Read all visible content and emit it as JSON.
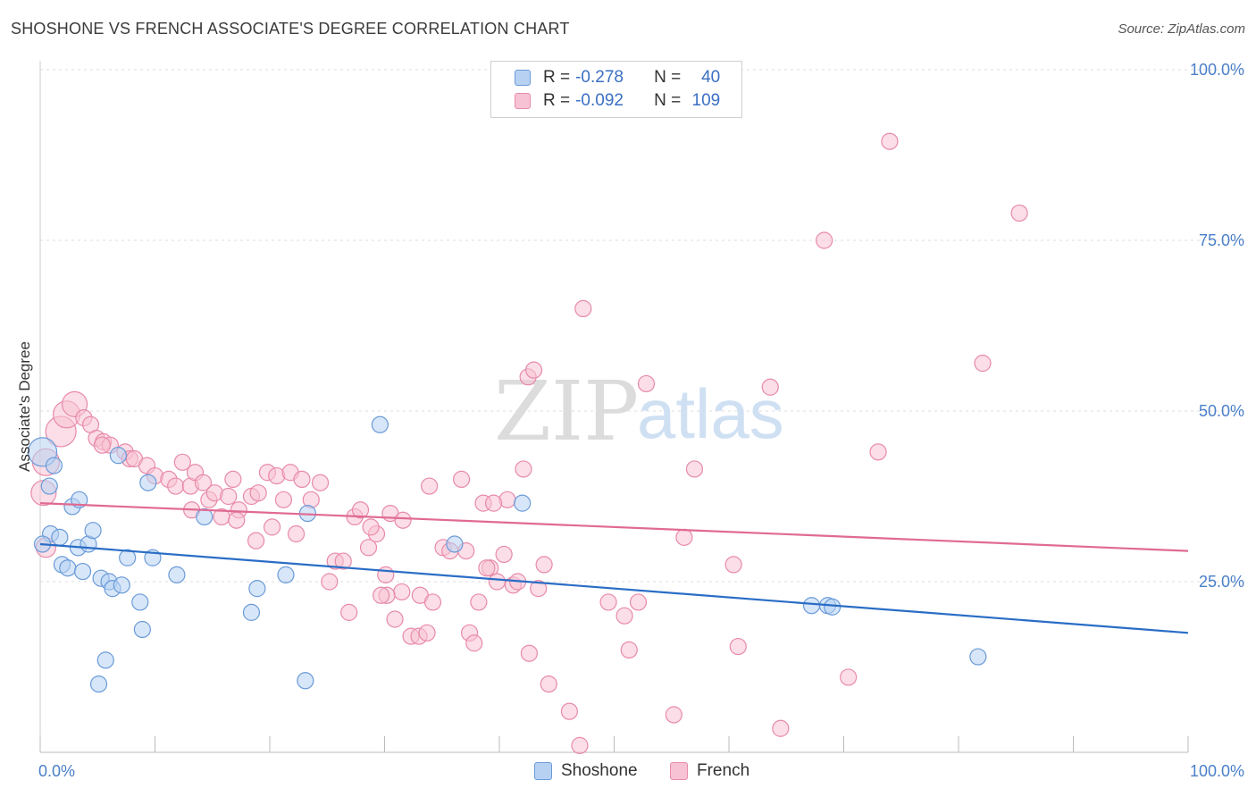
{
  "title": "SHOSHONE VS FRENCH ASSOCIATE'S DEGREE CORRELATION CHART",
  "source": "Source: ZipAtlas.com",
  "watermark": {
    "part1": "ZIP",
    "part2": "atlas"
  },
  "legend": {
    "rows": [
      {
        "r_label": "R =",
        "r_value": "-0.278",
        "n_label": "N =",
        "n_value": "40"
      },
      {
        "r_label": "R =",
        "r_value": "-0.092",
        "n_label": "N =",
        "n_value": "109"
      }
    ]
  },
  "colors": {
    "shoshone_fill": "#b7d1f3",
    "shoshone_stroke": "#6a9bd8",
    "shoshone_line": "#2a6dc6",
    "french_fill": "#f7c3d4",
    "french_stroke": "#e88aa9",
    "french_line": "#e06a93"
  },
  "chart_data": {
    "type": "scatter",
    "title": "SHOSHONE VS FRENCH ASSOCIATE'S DEGREE CORRELATION CHART",
    "xlabel": "",
    "ylabel": "Associate's Degree",
    "xlim": [
      0,
      100
    ],
    "ylim": [
      0,
      100
    ],
    "x_tick_labels": [
      "0.0%",
      "100.0%"
    ],
    "y_ticks": [
      {
        "value": 25,
        "label": "25.0%"
      },
      {
        "value": 50,
        "label": "50.0%"
      },
      {
        "value": 75,
        "label": "75.0%"
      },
      {
        "value": 100,
        "label": "100.0%"
      }
    ],
    "legend_labels": [
      "Shoshone",
      "French"
    ],
    "series": [
      {
        "name": "Shoshone",
        "r": -0.278,
        "n": 40,
        "trend": {
          "x": [
            0,
            100
          ],
          "y": [
            30.5,
            17.5
          ]
        },
        "points": [
          [
            0.2,
            44,
            16
          ],
          [
            0.8,
            39,
            9
          ],
          [
            1.2,
            42,
            9
          ],
          [
            0.9,
            32,
            9
          ],
          [
            1.7,
            31.5,
            9
          ],
          [
            1.9,
            27.5,
            9
          ],
          [
            2.4,
            27,
            9
          ],
          [
            2.8,
            36,
            9
          ],
          [
            3.4,
            37,
            9
          ],
          [
            3.3,
            30,
            9
          ],
          [
            4.2,
            30.5,
            9
          ],
          [
            4.6,
            32.5,
            9
          ],
          [
            3.7,
            26.5,
            9
          ],
          [
            5.3,
            25.5,
            9
          ],
          [
            6.0,
            25,
            9
          ],
          [
            6.3,
            24,
            9
          ],
          [
            7.1,
            24.5,
            9
          ],
          [
            6.8,
            43.5,
            9
          ],
          [
            7.6,
            28.5,
            9
          ],
          [
            8.7,
            22,
            9
          ],
          [
            8.9,
            18,
            9
          ],
          [
            9.8,
            28.5,
            9
          ],
          [
            9.4,
            39.5,
            9
          ],
          [
            11.9,
            26,
            9
          ],
          [
            14.3,
            34.5,
            9
          ],
          [
            5.7,
            13.5,
            9
          ],
          [
            5.1,
            10,
            9
          ],
          [
            18.9,
            24,
            9
          ],
          [
            18.4,
            20.5,
            9
          ],
          [
            21.4,
            26,
            9
          ],
          [
            23.3,
            35,
            9
          ],
          [
            23.1,
            10.5,
            9
          ],
          [
            29.6,
            48,
            9
          ],
          [
            36.1,
            30.5,
            9
          ],
          [
            42.0,
            36.5,
            9
          ],
          [
            67.2,
            21.5,
            9
          ],
          [
            68.6,
            21.5,
            9
          ],
          [
            69.0,
            21.3,
            9
          ],
          [
            81.7,
            14,
            9
          ],
          [
            0.2,
            30.5,
            9
          ]
        ]
      },
      {
        "name": "French",
        "r": -0.092,
        "n": 109,
        "trend": {
          "x": [
            0,
            100
          ],
          "y": [
            36.5,
            29.5
          ]
        },
        "points": [
          [
            0.3,
            38,
            14
          ],
          [
            0.5,
            42.5,
            15
          ],
          [
            1.8,
            47,
            17
          ],
          [
            2.3,
            49.5,
            15
          ],
          [
            3.0,
            51,
            14
          ],
          [
            0.5,
            30,
            11
          ],
          [
            3.8,
            49,
            9
          ],
          [
            4.4,
            48,
            9
          ],
          [
            4.9,
            46,
            9
          ],
          [
            5.5,
            45.5,
            9
          ],
          [
            6.1,
            45,
            9
          ],
          [
            5.4,
            45,
            9
          ],
          [
            7.4,
            44,
            9
          ],
          [
            7.8,
            43,
            9
          ],
          [
            8.2,
            43,
            9
          ],
          [
            9.3,
            42,
            9
          ],
          [
            10.0,
            40.5,
            9
          ],
          [
            11.2,
            40,
            9
          ],
          [
            11.8,
            39,
            9
          ],
          [
            12.4,
            42.5,
            9
          ],
          [
            13.1,
            39,
            9
          ],
          [
            13.5,
            41,
            9
          ],
          [
            13.2,
            35.5,
            9
          ],
          [
            14.2,
            39.5,
            9
          ],
          [
            14.7,
            37,
            9
          ],
          [
            15.2,
            38,
            9
          ],
          [
            15.8,
            34.5,
            9
          ],
          [
            16.4,
            37.5,
            9
          ],
          [
            16.8,
            40,
            9
          ],
          [
            17.3,
            35.5,
            9
          ],
          [
            17.1,
            34,
            9
          ],
          [
            18.4,
            37.5,
            9
          ],
          [
            19.0,
            38,
            9
          ],
          [
            19.8,
            41,
            9
          ],
          [
            20.6,
            40.5,
            9
          ],
          [
            21.2,
            37,
            9
          ],
          [
            21.8,
            41,
            9
          ],
          [
            20.2,
            33,
            9
          ],
          [
            18.8,
            31,
            9
          ],
          [
            22.3,
            32,
            9
          ],
          [
            22.8,
            40,
            9
          ],
          [
            23.6,
            37,
            9
          ],
          [
            24.4,
            39.5,
            9
          ],
          [
            25.2,
            25,
            9
          ],
          [
            25.7,
            28,
            9
          ],
          [
            26.4,
            28,
            9
          ],
          [
            26.9,
            20.5,
            9
          ],
          [
            27.4,
            34.5,
            9
          ],
          [
            27.9,
            35.5,
            9
          ],
          [
            28.6,
            30,
            9
          ],
          [
            29.3,
            32,
            9
          ],
          [
            30.1,
            26,
            9
          ],
          [
            30.5,
            35,
            9
          ],
          [
            31.6,
            34,
            9
          ],
          [
            30.9,
            19.5,
            9
          ],
          [
            31.5,
            23.5,
            9
          ],
          [
            32.3,
            17,
            9
          ],
          [
            33.0,
            17,
            9
          ],
          [
            33.7,
            17.5,
            9
          ],
          [
            33.1,
            23,
            9
          ],
          [
            34.2,
            22,
            9
          ],
          [
            33.9,
            39,
            9
          ],
          [
            35.1,
            30,
            9
          ],
          [
            35.7,
            29.5,
            9
          ],
          [
            36.7,
            40,
            9
          ],
          [
            37.4,
            17.5,
            9
          ],
          [
            37.8,
            16,
            9
          ],
          [
            38.2,
            22,
            9
          ],
          [
            38.6,
            36.5,
            9
          ],
          [
            39.2,
            27,
            9
          ],
          [
            39.8,
            25,
            9
          ],
          [
            40.4,
            29,
            9
          ],
          [
            41.2,
            24.5,
            9
          ],
          [
            41.6,
            25,
            9
          ],
          [
            42.1,
            41.5,
            9
          ],
          [
            42.5,
            55,
            9
          ],
          [
            43.0,
            56,
            9
          ],
          [
            43.4,
            24,
            9
          ],
          [
            42.6,
            14.5,
            9
          ],
          [
            43.9,
            27.5,
            9
          ],
          [
            44.3,
            10,
            9
          ],
          [
            46.1,
            6,
            9
          ],
          [
            47.3,
            65,
            9
          ],
          [
            47.0,
            1,
            9
          ],
          [
            49.5,
            22,
            9
          ],
          [
            50.9,
            20,
            9
          ],
          [
            51.3,
            15,
            9
          ],
          [
            52.1,
            22,
            9
          ],
          [
            52.8,
            54,
            9
          ],
          [
            55.2,
            5.5,
            9
          ],
          [
            56.1,
            31.5,
            9
          ],
          [
            57.0,
            41.5,
            9
          ],
          [
            60.4,
            27.5,
            9
          ],
          [
            60.8,
            15.5,
            9
          ],
          [
            63.6,
            53.5,
            9
          ],
          [
            64.5,
            3.5,
            9
          ],
          [
            68.3,
            75,
            9
          ],
          [
            70.4,
            11,
            9
          ],
          [
            73.0,
            44,
            9
          ],
          [
            74.0,
            89.5,
            9
          ],
          [
            82.1,
            57,
            9
          ],
          [
            85.3,
            79,
            9
          ],
          [
            40.7,
            37,
            9
          ],
          [
            38.9,
            27,
            9
          ],
          [
            30.2,
            23,
            9
          ],
          [
            28.8,
            33,
            9
          ],
          [
            29.7,
            23,
            9
          ],
          [
            37.1,
            29.5,
            9
          ],
          [
            39.5,
            36.5,
            9
          ]
        ]
      }
    ]
  }
}
